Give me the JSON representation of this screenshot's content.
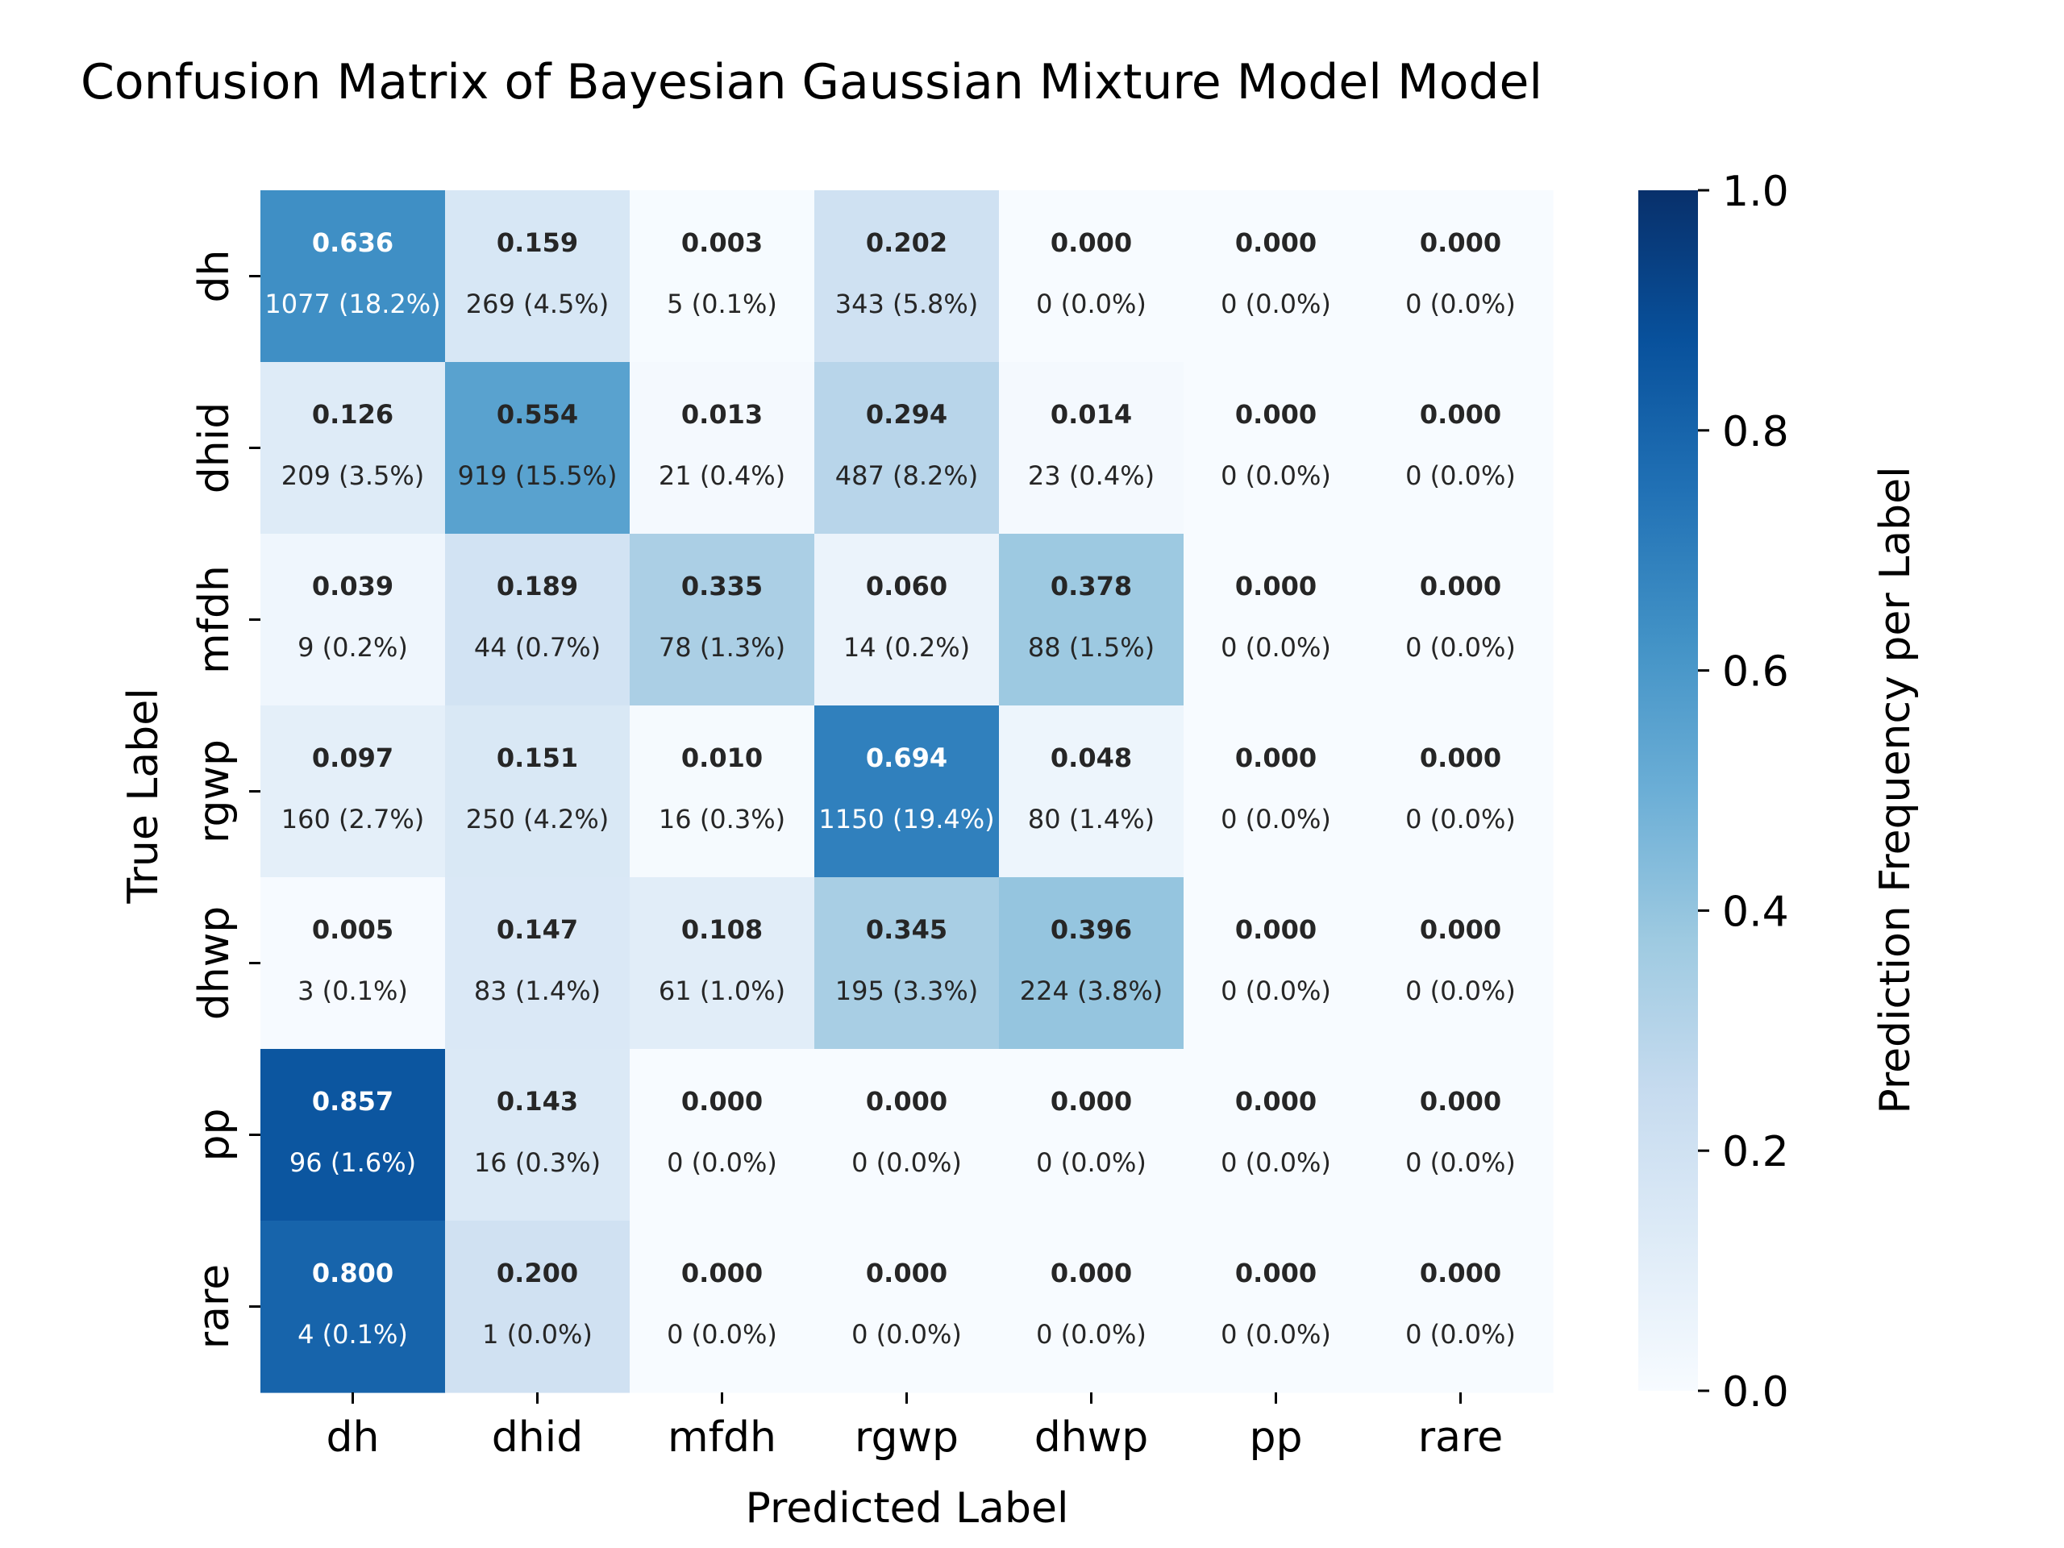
{
  "chart_data": {
    "type": "heatmap",
    "title": "Confusion Matrix of Bayesian Gaussian Mixture Model Model",
    "xlabel": "Predicted Label",
    "ylabel": "True Label",
    "x_categories": [
      "dh",
      "dhid",
      "mfdh",
      "rgwp",
      "dhwp",
      "pp",
      "rare"
    ],
    "y_categories": [
      "dh",
      "dhid",
      "mfdh",
      "rgwp",
      "dhwp",
      "pp",
      "rare"
    ],
    "values": [
      [
        0.636,
        0.159,
        0.003,
        0.202,
        0.0,
        0.0,
        0.0
      ],
      [
        0.126,
        0.554,
        0.013,
        0.294,
        0.014,
        0.0,
        0.0
      ],
      [
        0.039,
        0.189,
        0.335,
        0.06,
        0.378,
        0.0,
        0.0
      ],
      [
        0.097,
        0.151,
        0.01,
        0.694,
        0.048,
        0.0,
        0.0
      ],
      [
        0.005,
        0.147,
        0.108,
        0.345,
        0.396,
        0.0,
        0.0
      ],
      [
        0.857,
        0.143,
        0.0,
        0.0,
        0.0,
        0.0,
        0.0
      ],
      [
        0.8,
        0.2,
        0.0,
        0.0,
        0.0,
        0.0,
        0.0
      ]
    ],
    "value_labels": [
      [
        "0.636",
        "0.159",
        "0.003",
        "0.202",
        "0.000",
        "0.000",
        "0.000"
      ],
      [
        "0.126",
        "0.554",
        "0.013",
        "0.294",
        "0.014",
        "0.000",
        "0.000"
      ],
      [
        "0.039",
        "0.189",
        "0.335",
        "0.060",
        "0.378",
        "0.000",
        "0.000"
      ],
      [
        "0.097",
        "0.151",
        "0.010",
        "0.694",
        "0.048",
        "0.000",
        "0.000"
      ],
      [
        "0.005",
        "0.147",
        "0.108",
        "0.345",
        "0.396",
        "0.000",
        "0.000"
      ],
      [
        "0.857",
        "0.143",
        "0.000",
        "0.000",
        "0.000",
        "0.000",
        "0.000"
      ],
      [
        "0.800",
        "0.200",
        "0.000",
        "0.000",
        "0.000",
        "0.000",
        "0.000"
      ]
    ],
    "count_labels": [
      [
        "1077 (18.2%)",
        "269 (4.5%)",
        "5 (0.1%)",
        "343 (5.8%)",
        "0 (0.0%)",
        "0 (0.0%)",
        "0 (0.0%)"
      ],
      [
        "209 (3.5%)",
        "919 (15.5%)",
        "21 (0.4%)",
        "487 (8.2%)",
        "23 (0.4%)",
        "0 (0.0%)",
        "0 (0.0%)"
      ],
      [
        "9 (0.2%)",
        "44 (0.7%)",
        "78 (1.3%)",
        "14 (0.2%)",
        "88 (1.5%)",
        "0 (0.0%)",
        "0 (0.0%)"
      ],
      [
        "160 (2.7%)",
        "250 (4.2%)",
        "16 (0.3%)",
        "1150 (19.4%)",
        "80 (1.4%)",
        "0 (0.0%)",
        "0 (0.0%)"
      ],
      [
        "3 (0.1%)",
        "83 (1.4%)",
        "61 (1.0%)",
        "195 (3.3%)",
        "224 (3.8%)",
        "0 (0.0%)",
        "0 (0.0%)"
      ],
      [
        "96 (1.6%)",
        "16 (0.3%)",
        "0 (0.0%)",
        "0 (0.0%)",
        "0 (0.0%)",
        "0 (0.0%)",
        "0 (0.0%)"
      ],
      [
        "4 (0.1%)",
        "1 (0.0%)",
        "0 (0.0%)",
        "0 (0.0%)",
        "0 (0.0%)",
        "0 (0.0%)",
        "0 (0.0%)"
      ]
    ],
    "colorbar": {
      "label": "Prediction Frequency per Label",
      "range": [
        0.0,
        1.0
      ],
      "ticks": [
        0.0,
        0.2,
        0.4,
        0.6,
        0.8,
        1.0
      ],
      "tick_labels": [
        "0.0",
        "0.2",
        "0.4",
        "0.6",
        "0.8",
        "1.0"
      ],
      "colormap": "Blues",
      "color_stops": [
        "#f7fbff",
        "#deebf7",
        "#c6dbef",
        "#9ecae1",
        "#6baed6",
        "#4292c6",
        "#2171b5",
        "#08519c",
        "#08306b"
      ]
    },
    "grid": false
  }
}
